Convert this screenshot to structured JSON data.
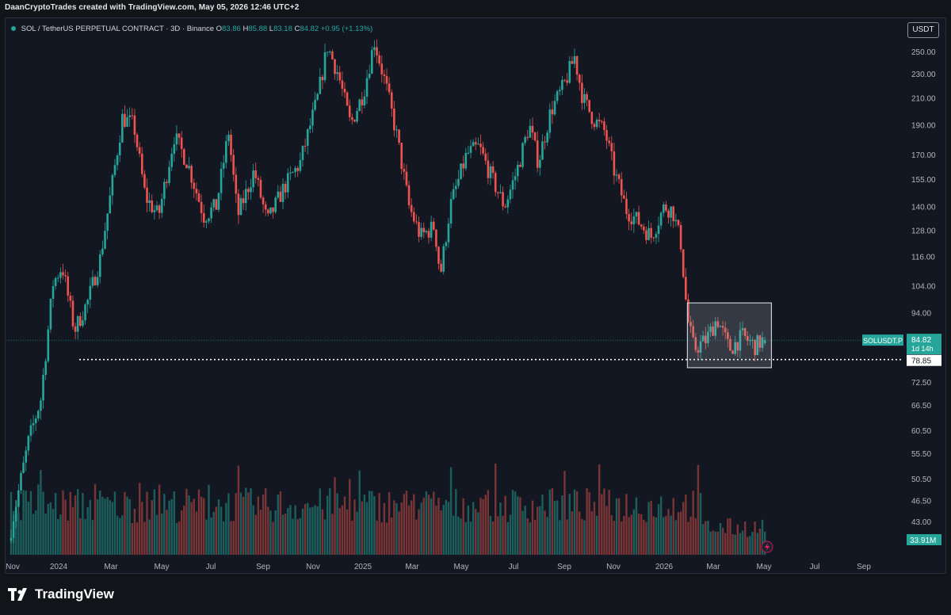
{
  "header": {
    "caption": "DaanCryptoTrades created with TradingView.com, May 05, 2026 12:46 UTC+2"
  },
  "legend": {
    "symbol": "SOL / TetherUS PERPETUAL CONTRACT · 3D · Binance",
    "o_label": "O",
    "o_value": "83.86",
    "h_label": "H",
    "h_value": "85.88",
    "l_label": "L",
    "l_value": "83.18",
    "c_label": "C",
    "c_value": "84.82",
    "change": "+0.95 (+1.13%)"
  },
  "currency_button": "USDT",
  "footer": {
    "brand": "TradingView"
  },
  "colors": {
    "up": "#26a69a",
    "down": "#ef5350",
    "background": "#131722",
    "box": "#b2b5be",
    "label_bg": "#26a69a"
  },
  "chart_data": {
    "type": "candlestick",
    "y_scale": "log",
    "y_ticks": [
      "250.00",
      "230.00",
      "210.00",
      "190.00",
      "170.00",
      "155.00",
      "140.00",
      "128.00",
      "116.00",
      "104.00",
      "94.00",
      "84.82",
      "78.85",
      "72.50",
      "66.50",
      "60.50",
      "55.50",
      "50.50",
      "46.50",
      "43.00"
    ],
    "y_ticks_values": [
      250,
      230,
      210,
      190,
      170,
      155,
      140,
      128,
      116,
      104,
      94,
      72.5,
      66.5,
      60.5,
      55.5,
      50.5,
      46.5,
      43
    ],
    "x_ticks": [
      "Nov",
      "2024",
      "Mar",
      "May",
      "Jul",
      "Sep",
      "Nov",
      "2025",
      "Mar",
      "May",
      "Jul",
      "Sep",
      "Nov",
      "2026",
      "Mar",
      "May",
      "Jul",
      "Sep"
    ],
    "price_path": [
      [
        "2023-11-01",
        40
      ],
      [
        "2023-11-25",
        58
      ],
      [
        "2023-12-10",
        68
      ],
      [
        "2023-12-25",
        105
      ],
      [
        "2024-01-05",
        112
      ],
      [
        "2024-01-20",
        88
      ],
      [
        "2024-02-05",
        98
      ],
      [
        "2024-02-20",
        115
      ],
      [
        "2024-03-05",
        150
      ],
      [
        "2024-03-18",
        195
      ],
      [
        "2024-04-01",
        190
      ],
      [
        "2024-04-15",
        145
      ],
      [
        "2024-05-01",
        135
      ],
      [
        "2024-05-20",
        182
      ],
      [
        "2024-06-05",
        165
      ],
      [
        "2024-06-25",
        135
      ],
      [
        "2024-07-10",
        140
      ],
      [
        "2024-07-25",
        185
      ],
      [
        "2024-08-05",
        135
      ],
      [
        "2024-08-25",
        160
      ],
      [
        "2024-09-10",
        132
      ],
      [
        "2024-09-30",
        150
      ],
      [
        "2024-10-20",
        165
      ],
      [
        "2024-11-10",
        210
      ],
      [
        "2024-11-22",
        255
      ],
      [
        "2024-12-05",
        230
      ],
      [
        "2024-12-20",
        190
      ],
      [
        "2025-01-05",
        215
      ],
      [
        "2025-01-18",
        260
      ],
      [
        "2025-02-01",
        220
      ],
      [
        "2025-02-15",
        180
      ],
      [
        "2025-03-01",
        140
      ],
      [
        "2025-03-15",
        125
      ],
      [
        "2025-04-01",
        130
      ],
      [
        "2025-04-08",
        108
      ],
      [
        "2025-04-20",
        140
      ],
      [
        "2025-05-10",
        170
      ],
      [
        "2025-05-25",
        175
      ],
      [
        "2025-06-10",
        155
      ],
      [
        "2025-06-25",
        140
      ],
      [
        "2025-07-10",
        160
      ],
      [
        "2025-07-25",
        190
      ],
      [
        "2025-08-05",
        165
      ],
      [
        "2025-08-20",
        200
      ],
      [
        "2025-09-05",
        220
      ],
      [
        "2025-09-18",
        245
      ],
      [
        "2025-09-28",
        210
      ],
      [
        "2025-10-10",
        195
      ],
      [
        "2025-10-25",
        185
      ],
      [
        "2025-11-05",
        160
      ],
      [
        "2025-11-20",
        138
      ],
      [
        "2025-12-05",
        132
      ],
      [
        "2025-12-20",
        125
      ],
      [
        "2026-01-05",
        140
      ],
      [
        "2026-01-15",
        138
      ],
      [
        "2026-01-25",
        122
      ],
      [
        "2026-02-02",
        92
      ],
      [
        "2026-02-10",
        82
      ],
      [
        "2026-02-25",
        85
      ],
      [
        "2026-03-10",
        92
      ],
      [
        "2026-03-25",
        82
      ],
      [
        "2026-04-10",
        86
      ],
      [
        "2026-04-25",
        83
      ],
      [
        "2026-05-05",
        84.82
      ]
    ],
    "current_price": {
      "label": "SOLUSDT.P",
      "value": "84.82",
      "countdown": "1d 14h"
    },
    "support_line": {
      "value": "78.85"
    },
    "range_box": {
      "x_start": "2026-01-30",
      "x_end": "2026-05-12",
      "y_low": 76.5,
      "y_high": 97.5
    },
    "volume_label": "33.91M"
  }
}
